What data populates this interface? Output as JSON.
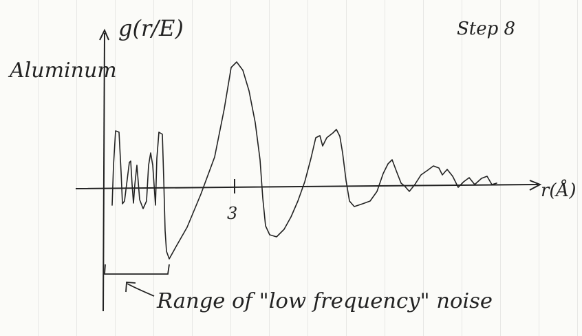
{
  "y_axis_label": "g(r/E)",
  "x_axis_label": "r(Å)",
  "step_label": "Step 8",
  "material_label": "Aluminum",
  "x_tick_label": "3",
  "annotation": "Range of \"low frequency\" noise",
  "colors": {
    "ink": "#222222",
    "paper": "#fbfbf8"
  }
}
